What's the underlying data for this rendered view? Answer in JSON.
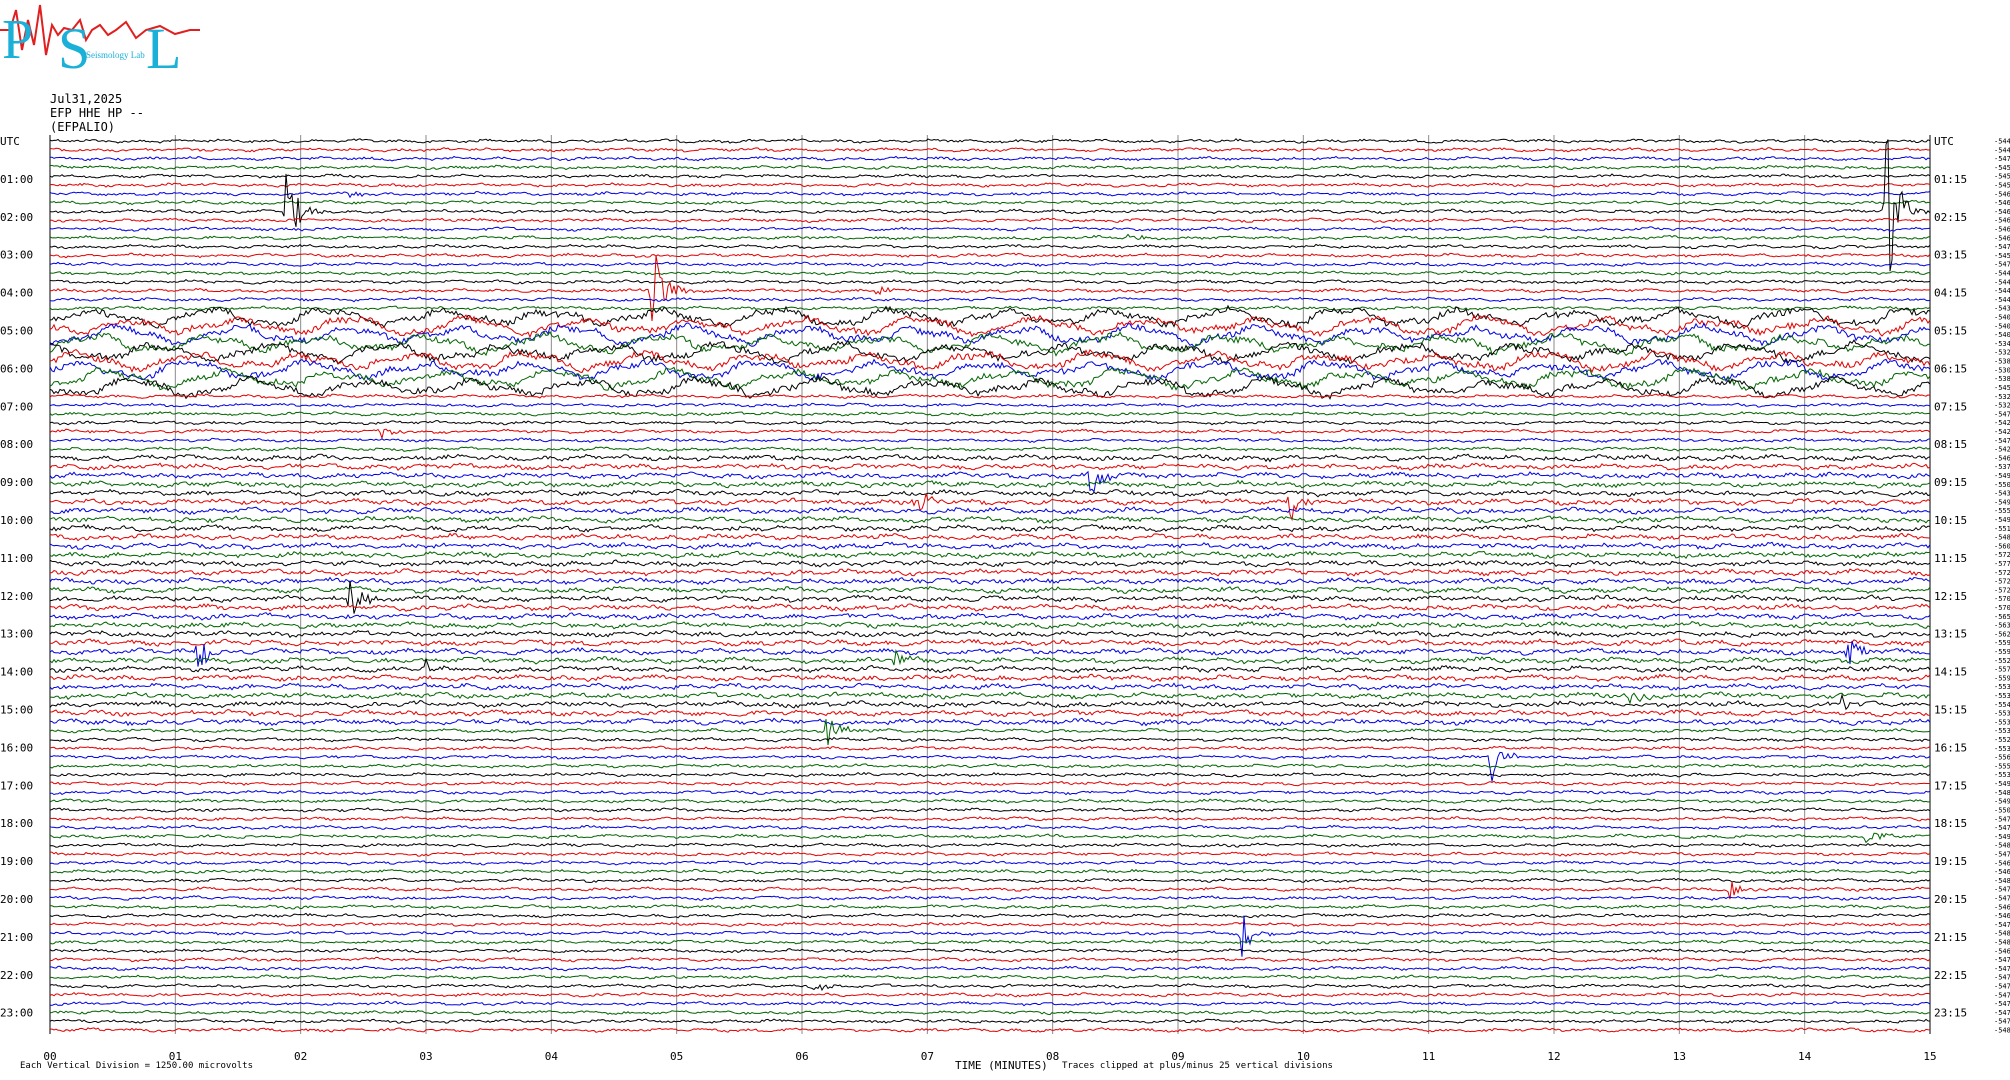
{
  "header": {
    "logo_letters": [
      "P",
      "S",
      "L"
    ],
    "logo_subtext": "Seismology Lab",
    "date": "Jul31,2025",
    "station": "EFP HHE HP --",
    "station_code": "(EFPALIO)"
  },
  "footer": {
    "scale_note": "Each Vertical Division = 1250.00 microvolts",
    "x_axis_label": "TIME (MINUTES)",
    "clip_note": "Traces clipped at plus/minus 25 vertical divisions"
  },
  "colors": {
    "black": "#000000",
    "red": "#e00000",
    "blue": "#0000e0",
    "green": "#006400",
    "grid": "#8a8a8a",
    "logo": "#1ab0d8",
    "logo_wave": "#e02020"
  },
  "chart_data": {
    "type": "line",
    "x_axis": {
      "min": 0,
      "max": 15,
      "ticks": [
        "00",
        "01",
        "02",
        "03",
        "04",
        "05",
        "06",
        "07",
        "08",
        "09",
        "10",
        "11",
        "12",
        "13",
        "14",
        "15"
      ]
    },
    "left_labels": [
      "UTC",
      "01:00",
      "02:00",
      "03:00",
      "04:00",
      "05:00",
      "06:00",
      "07:00",
      "08:00",
      "09:00",
      "10:00",
      "11:00",
      "12:00",
      "13:00",
      "14:00",
      "15:00",
      "16:00",
      "17:00",
      "18:00",
      "19:00",
      "20:00",
      "21:00",
      "22:00",
      "23:00"
    ],
    "right_labels": [
      "UTC",
      "01:15",
      "02:15",
      "03:15",
      "04:15",
      "05:15",
      "06:15",
      "07:15",
      "08:15",
      "09:15",
      "10:15",
      "11:15",
      "12:15",
      "13:15",
      "14:15",
      "15:15",
      "16:15",
      "17:15",
      "18:15",
      "19:15",
      "20:15",
      "21:15",
      "22:15",
      "23:15"
    ],
    "trace_colors": [
      "black",
      "red",
      "blue",
      "green"
    ],
    "trace_offsets": [
      "-5440",
      "-5443",
      "-5474",
      "-5458",
      "-5457",
      "-5451",
      "-5462",
      "-5464",
      "-5460",
      "-5460",
      "-5463",
      "-5463",
      "-5474",
      "-5452",
      "-5470",
      "-5447",
      "-5449",
      "-5448",
      "-5441",
      "-5431",
      "-5401",
      "-5404",
      "-5406",
      "-5340",
      "-5329",
      "-5387",
      "-5301",
      "-5381",
      "-5457",
      "-5324",
      "-5321",
      "-5473",
      "-5426",
      "-5421",
      "-5474",
      "-5424",
      "-5469",
      "-5375",
      "-5496",
      "-5504",
      "-5433",
      "-5495",
      "-5559",
      "-5493",
      "-5511",
      "-5485",
      "-5605",
      "-5729",
      "-5777",
      "-5726",
      "-5722",
      "-5724",
      "-5701",
      "-5708",
      "-5658",
      "-5632",
      "-5624",
      "-5596",
      "-5598",
      "-5529",
      "-5573",
      "-5591",
      "-5532",
      "-5532",
      "-5546",
      "-5532",
      "-5531",
      "-5537",
      "-5529",
      "-5534",
      "-5565",
      "-5557",
      "-5530",
      "-5490",
      "-5488",
      "-5495",
      "-5503",
      "-5478",
      "-5476",
      "-5494",
      "-5482",
      "-5474",
      "-5467",
      "-5465",
      "-5482",
      "-5473",
      "-5475",
      "-5469",
      "-5460",
      "-5471",
      "-5482",
      "-5482",
      "-5467",
      "-5474",
      "-5477",
      "-5475",
      "-5473",
      "-5474",
      "-5476",
      "-5478",
      "-5479",
      "-5482"
    ],
    "events": [
      {
        "trace": 8,
        "minute": 1.88,
        "size": 45
      },
      {
        "trace": 6,
        "minute": 2.4,
        "size": 6
      },
      {
        "trace": 8,
        "minute": 14.65,
        "size": 90
      },
      {
        "trace": 11,
        "minute": 8.6,
        "size": 4
      },
      {
        "trace": 17,
        "minute": 4.8,
        "size": 55
      },
      {
        "trace": 17,
        "minute": 6.6,
        "size": 6
      },
      {
        "trace": 33,
        "minute": 2.65,
        "size": 8
      },
      {
        "trace": 38,
        "minute": 8.3,
        "size": 28
      },
      {
        "trace": 41,
        "minute": 6.9,
        "size": 18
      },
      {
        "trace": 41,
        "minute": 9.9,
        "size": 18
      },
      {
        "trace": 52,
        "minute": 2.4,
        "size": 30
      },
      {
        "trace": 58,
        "minute": 1.18,
        "size": 20
      },
      {
        "trace": 58,
        "minute": 14.35,
        "size": 18
      },
      {
        "trace": 60,
        "minute": 3.0,
        "size": 10
      },
      {
        "trace": 59,
        "minute": 6.75,
        "size": 12
      },
      {
        "trace": 63,
        "minute": 12.6,
        "size": 10
      },
      {
        "trace": 64,
        "minute": 14.3,
        "size": 12
      },
      {
        "trace": 67,
        "minute": 6.2,
        "size": 25
      },
      {
        "trace": 70,
        "minute": 11.5,
        "size": 25
      },
      {
        "trace": 79,
        "minute": 14.5,
        "size": 12
      },
      {
        "trace": 85,
        "minute": 13.4,
        "size": 10
      },
      {
        "trace": 90,
        "minute": 9.5,
        "size": 28
      },
      {
        "trace": 96,
        "minute": 6.1,
        "size": 6
      }
    ]
  }
}
